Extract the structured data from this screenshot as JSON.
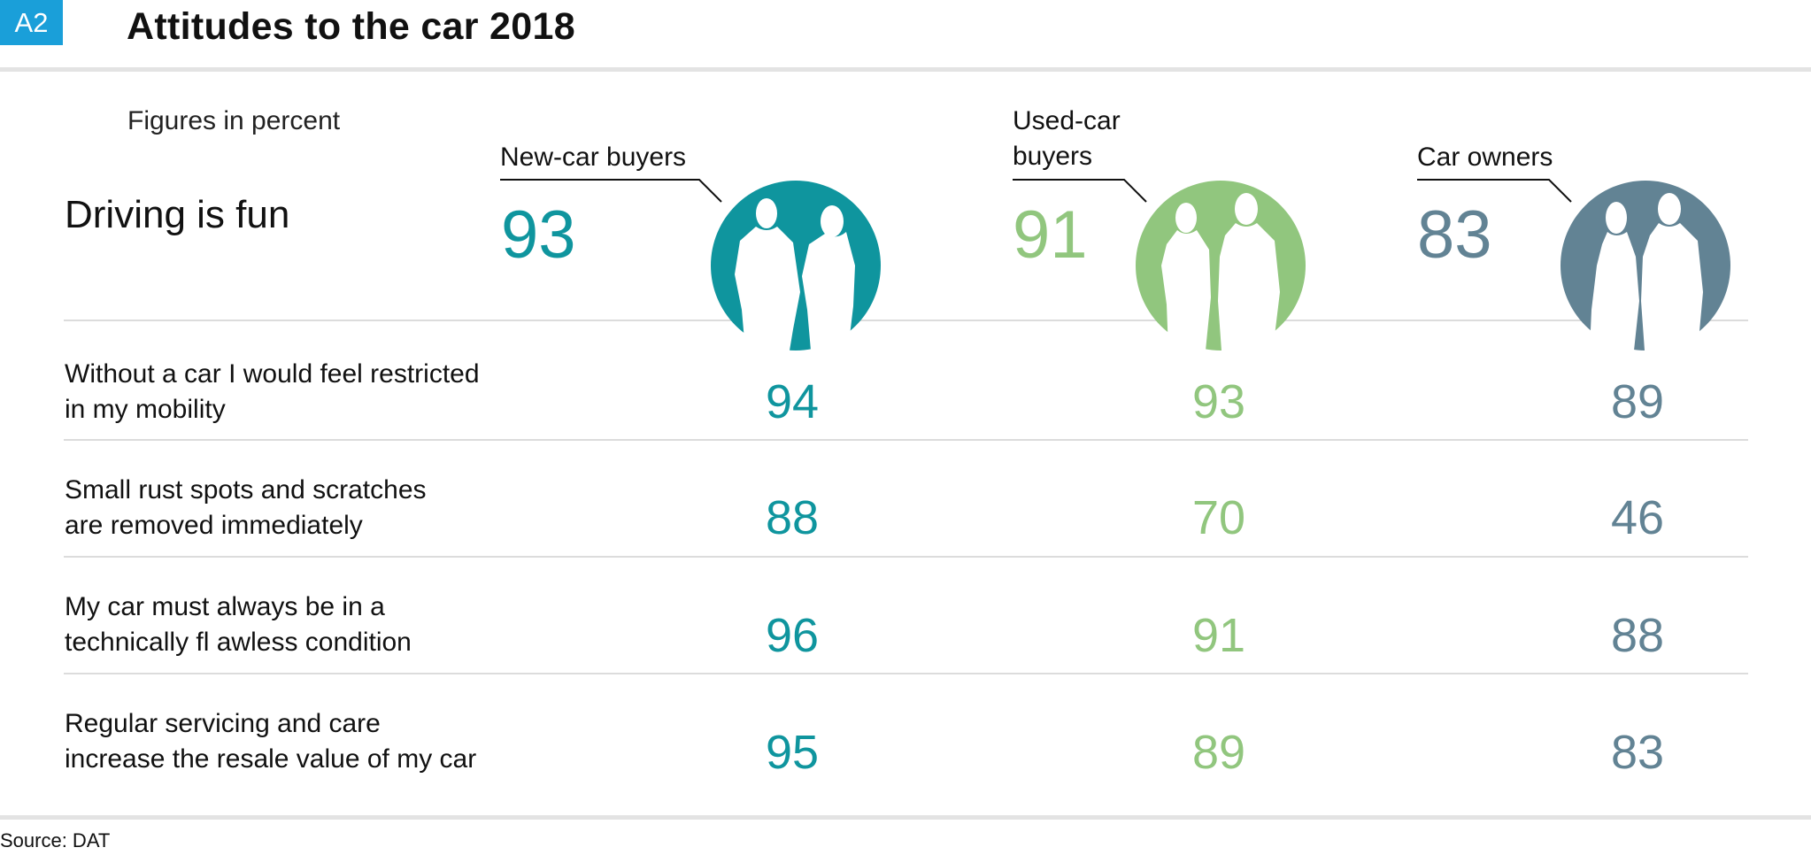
{
  "badge": "A2",
  "title": "Attitudes to the car 2018",
  "subtitle": "Figures in percent",
  "source": "Source: DAT",
  "colors": {
    "new": "#0f959e",
    "used": "#91c67e",
    "owners": "#628394",
    "badge": "#1a9fd9"
  },
  "groups": [
    {
      "label_line1": "New-car buyers",
      "label_line2": "",
      "icon": "couple-silhouette-icon",
      "color": "#0f959e"
    },
    {
      "label_line1": "Used-car",
      "label_line2": "buyers",
      "icon": "couple-silhouette-icon",
      "color": "#91c67e"
    },
    {
      "label_line1": "Car owners",
      "label_line2": "",
      "icon": "couple-silhouette-icon",
      "color": "#628394"
    }
  ],
  "chart_data": {
    "type": "table",
    "columns": [
      "New-car buyers",
      "Used-car buyers",
      "Car owners"
    ],
    "rows": [
      {
        "label_line1": "Driving is fun",
        "label_line2": "",
        "values": [
          93,
          91,
          83
        ]
      },
      {
        "label_line1": "Without a car I would feel restricted",
        "label_line2": "in my mobility",
        "values": [
          94,
          93,
          89
        ]
      },
      {
        "label_line1": "Small rust spots and scratches",
        "label_line2": "are removed immediately",
        "values": [
          88,
          70,
          46
        ]
      },
      {
        "label_line1": "My car must always be in a",
        "label_line2": "technically fl awless condition",
        "values": [
          96,
          91,
          88
        ]
      },
      {
        "label_line1": "Regular servicing and care",
        "label_line2": "increase the resale value of my car",
        "values": [
          95,
          89,
          83
        ]
      }
    ]
  }
}
